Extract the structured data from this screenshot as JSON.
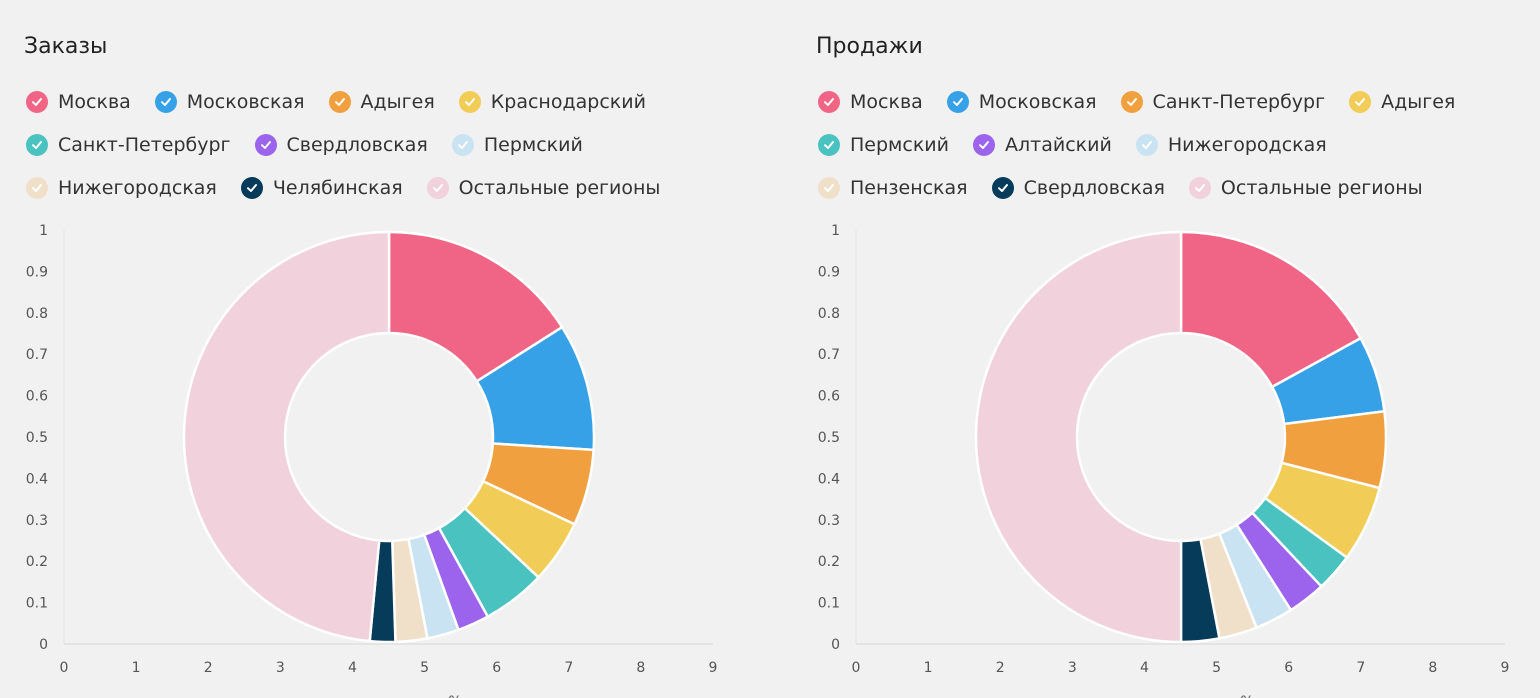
{
  "chart_data": [
    {
      "type": "pie",
      "title": "Заказы",
      "donut": true,
      "legend_position": "top-left",
      "grid": false,
      "xlim": [
        0,
        9
      ],
      "ylim": [
        0,
        1
      ],
      "x_ticks": [
        "0",
        "1",
        "2",
        "3",
        "4",
        "5",
        "6",
        "7",
        "8",
        "9"
      ],
      "y_ticks": [
        "0",
        "0.1",
        "0.2",
        "0.3",
        "0.4",
        "0.5",
        "0.6",
        "0.7",
        "0.8",
        "0.9",
        "1"
      ],
      "xlabel": "%",
      "slices": [
        {
          "label": "Москва",
          "value": 16,
          "color": "#f06585"
        },
        {
          "label": "Московская",
          "value": 10,
          "color": "#37a1e8"
        },
        {
          "label": "Адыгея",
          "value": 6,
          "color": "#f0a03e"
        },
        {
          "label": "Краснодарский",
          "value": 5,
          "color": "#f1cd57"
        },
        {
          "label": "Санкт-Петербург",
          "value": 5,
          "color": "#4ac2bf"
        },
        {
          "label": "Свердловская",
          "value": 2.5,
          "color": "#9c63ec"
        },
        {
          "label": "Пермский",
          "value": 2.5,
          "color": "#c9e3f2"
        },
        {
          "label": "Нижегородская",
          "value": 2.5,
          "color": "#f1e0c9"
        },
        {
          "label": "Челябинская",
          "value": 2,
          "color": "#063b5a"
        },
        {
          "label": "Остальные регионы",
          "value": 48.5,
          "color": "#f1d1dc"
        }
      ]
    },
    {
      "type": "pie",
      "title": "Продажи",
      "donut": true,
      "legend_position": "top-left",
      "grid": false,
      "xlim": [
        0,
        9
      ],
      "ylim": [
        0,
        1
      ],
      "x_ticks": [
        "0",
        "1",
        "2",
        "3",
        "4",
        "5",
        "6",
        "7",
        "8",
        "9"
      ],
      "y_ticks": [
        "0",
        "0.1",
        "0.2",
        "0.3",
        "0.4",
        "0.5",
        "0.6",
        "0.7",
        "0.8",
        "0.9",
        "1"
      ],
      "xlabel": "%",
      "slices": [
        {
          "label": "Москва",
          "value": 17,
          "color": "#f06585"
        },
        {
          "label": "Московская",
          "value": 6,
          "color": "#37a1e8"
        },
        {
          "label": "Санкт-Петербург",
          "value": 6,
          "color": "#f0a03e"
        },
        {
          "label": "Адыгея",
          "value": 6,
          "color": "#f1cd57"
        },
        {
          "label": "Пермский",
          "value": 3,
          "color": "#4ac2bf"
        },
        {
          "label": "Алтайский",
          "value": 3,
          "color": "#9c63ec"
        },
        {
          "label": "Нижегородская",
          "value": 3,
          "color": "#c9e3f2"
        },
        {
          "label": "Пензенская",
          "value": 3,
          "color": "#f1e0c9"
        },
        {
          "label": "Свердловская",
          "value": 3,
          "color": "#063b5a"
        },
        {
          "label": "Остальные регионы",
          "value": 50,
          "color": "#f1d1dc"
        }
      ]
    }
  ]
}
